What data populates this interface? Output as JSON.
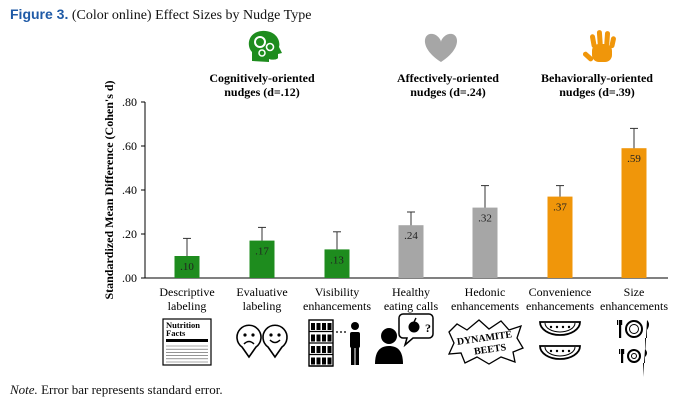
{
  "figure": {
    "label": "Figure 3.",
    "title": "(Color online) Effect Sizes by Nudge Type"
  },
  "note": {
    "label": "Note.",
    "text": "Error bar represents standard error."
  },
  "colors": {
    "cognitive": "#1e8c1e",
    "affective": "#a6a6a6",
    "behavioral": "#f0960a",
    "figure_label": "#1f5aa6"
  },
  "groups": [
    {
      "name": "Cognitively-oriented",
      "line2": "nudges (d=.12)",
      "icon": "gears-head-icon",
      "color": "#1e8c1e"
    },
    {
      "name": "Affectively-oriented",
      "line2": "nudges (d=.24)",
      "icon": "heart-icon",
      "color": "#a6a6a6"
    },
    {
      "name": "Behaviorally-oriented",
      "line2": "nudges (d=.39)",
      "icon": "hand-icon",
      "color": "#f0960a"
    }
  ],
  "chart_data": {
    "type": "bar",
    "ylabel": "Standardized Mean Difference (Cohen's d)",
    "ylim": [
      0,
      0.8
    ],
    "yticks": [
      0,
      0.2,
      0.4,
      0.6,
      0.8
    ],
    "ytick_labels": [
      ".00",
      ".20",
      ".40",
      ".60",
      ".80"
    ],
    "grid": false,
    "error_bars": "standard error",
    "categories": [
      "Descriptive labeling",
      "Evaluative labeling",
      "Visibility enhancements",
      "Healthy eating calls",
      "Hedonic enhancements",
      "Convenience enhancements",
      "Size enhancements"
    ],
    "category_lines": [
      [
        "Descriptive",
        "labeling"
      ],
      [
        "Evaluative",
        "labeling"
      ],
      [
        "Visibility",
        "enhancements"
      ],
      [
        "Healthy",
        "eating calls"
      ],
      [
        "Hedonic",
        "enhancements"
      ],
      [
        "Convenience",
        "enhancements"
      ],
      [
        "Size",
        "enhancements"
      ]
    ],
    "values": [
      0.1,
      0.17,
      0.13,
      0.24,
      0.32,
      0.37,
      0.59
    ],
    "value_labels": [
      ".10",
      ".17",
      ".13",
      ".24",
      ".32",
      ".37",
      ".59"
    ],
    "errors": [
      0.08,
      0.06,
      0.08,
      0.06,
      0.1,
      0.05,
      0.09
    ],
    "group_of_bar": [
      0,
      0,
      0,
      1,
      1,
      2,
      2
    ],
    "bar_icons": [
      "nutrition-facts-icon",
      "sad-happy-face-icons",
      "shelf-person-icon",
      "person-speech-apple-icon",
      "dynamite-beets-icon",
      "melon-slices-icon",
      "plate-cutlery-icon"
    ],
    "icon_texts": {
      "nutrition": [
        "Nutrition",
        "Facts"
      ],
      "dynamite": [
        "DYNAMITE",
        "BEETS"
      ]
    }
  }
}
